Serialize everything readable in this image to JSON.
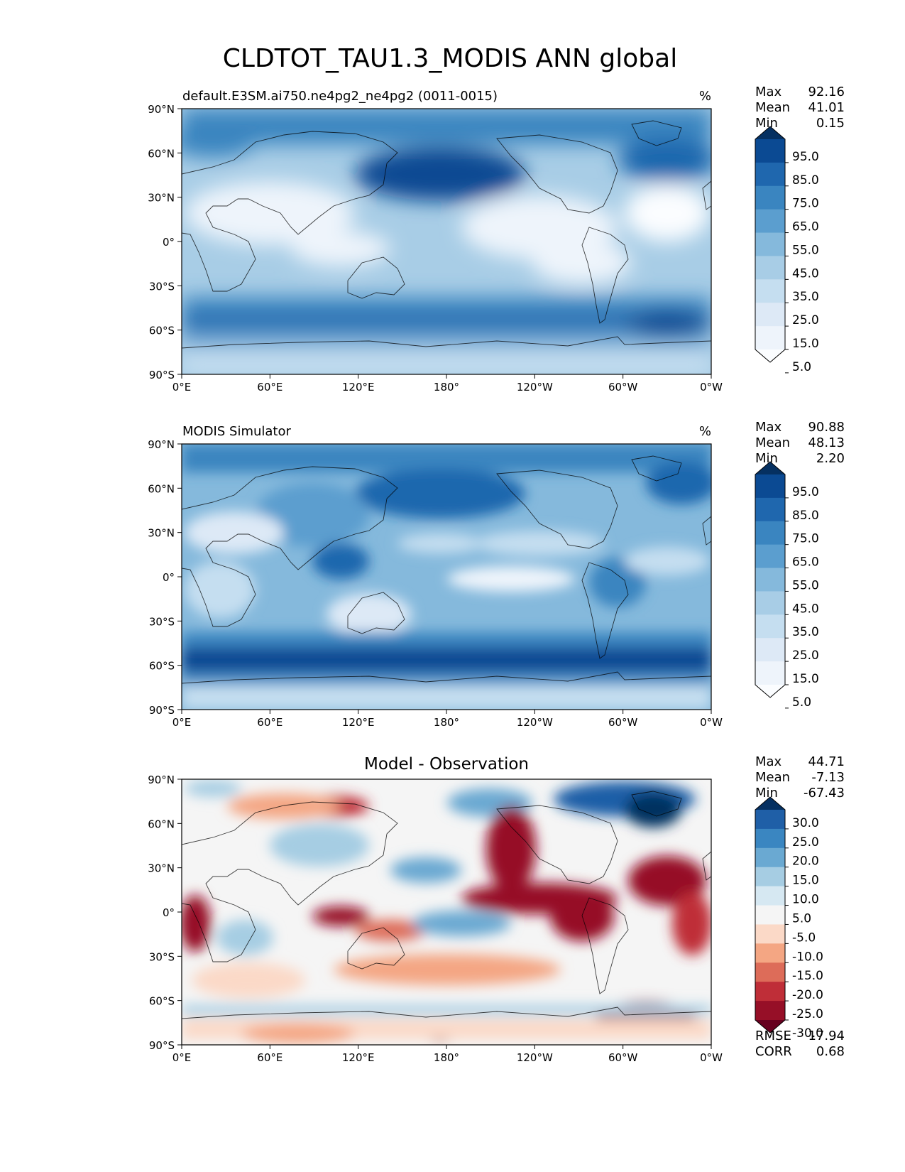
{
  "figure": {
    "title": "CLDTOT_TAU1.3_MODIS ANN global"
  },
  "axes": {
    "lat_ticks": [
      "90°N",
      "60°N",
      "30°N",
      "0°",
      "30°S",
      "60°S",
      "90°S"
    ],
    "lon_ticks": [
      "0°E",
      "60°E",
      "120°E",
      "180°",
      "120°W",
      "60°W",
      "0°W"
    ]
  },
  "panels": [
    {
      "id": "test",
      "left_title": "default.E3SM.ai750.ne4pg2_ne4pg2 (0011-0015)",
      "center_title": "",
      "units": "%",
      "stats": [
        {
          "label": "Max",
          "value": "92.16"
        },
        {
          "label": "Mean",
          "value": "41.01"
        },
        {
          "label": "Min",
          "value": "0.15"
        }
      ],
      "colorbar": {
        "levels": [
          "95.0",
          "85.0",
          "75.0",
          "65.0",
          "55.0",
          "45.0",
          "35.0",
          "25.0",
          "15.0",
          "5.0"
        ],
        "colors_top_to_bottom": [
          "#053061",
          "#0b4a93",
          "#1f67ae",
          "#3a85c0",
          "#5b9ecf",
          "#85b9dc",
          "#a8cde6",
          "#c5def0",
          "#dde9f6",
          "#eef4fb",
          "#fbfdff"
        ]
      },
      "footer_stats": []
    },
    {
      "id": "reference",
      "left_title": "MODIS Simulator",
      "center_title": "",
      "units": "%",
      "stats": [
        {
          "label": "Max",
          "value": "90.88"
        },
        {
          "label": "Mean",
          "value": "48.13"
        },
        {
          "label": "Min",
          "value": "2.20"
        }
      ],
      "colorbar": {
        "levels": [
          "95.0",
          "85.0",
          "75.0",
          "65.0",
          "55.0",
          "45.0",
          "35.0",
          "25.0",
          "15.0",
          "5.0"
        ],
        "colors_top_to_bottom": [
          "#053061",
          "#0b4a93",
          "#1f67ae",
          "#3a85c0",
          "#5b9ecf",
          "#85b9dc",
          "#a8cde6",
          "#c5def0",
          "#dde9f6",
          "#eef4fb",
          "#fbfdff"
        ]
      },
      "footer_stats": []
    },
    {
      "id": "difference",
      "left_title": "",
      "center_title": "Model - Observation",
      "units": "",
      "stats": [
        {
          "label": "Max",
          "value": "44.71"
        },
        {
          "label": "Mean",
          "value": "-7.13"
        },
        {
          "label": "Min",
          "value": "-67.43"
        }
      ],
      "colorbar": {
        "levels": [
          "30.0",
          "25.0",
          "20.0",
          "15.0",
          "10.0",
          "5.0",
          "-5.0",
          "-10.0",
          "-15.0",
          "-20.0",
          "-25.0",
          "-30.0"
        ],
        "colors_top_to_bottom": [
          "#053061",
          "#1f5fa7",
          "#3a86c1",
          "#6aa9d2",
          "#a6cde3",
          "#d6e8f2",
          "#f5f5f5",
          "#fbd9c7",
          "#f4a683",
          "#dd6c59",
          "#bf2e38",
          "#960f27",
          "#67001f"
        ]
      },
      "footer_stats": [
        {
          "label": "RMSE",
          "value": "17.94"
        },
        {
          "label": "CORR",
          "value": "0.68"
        }
      ]
    }
  ]
}
